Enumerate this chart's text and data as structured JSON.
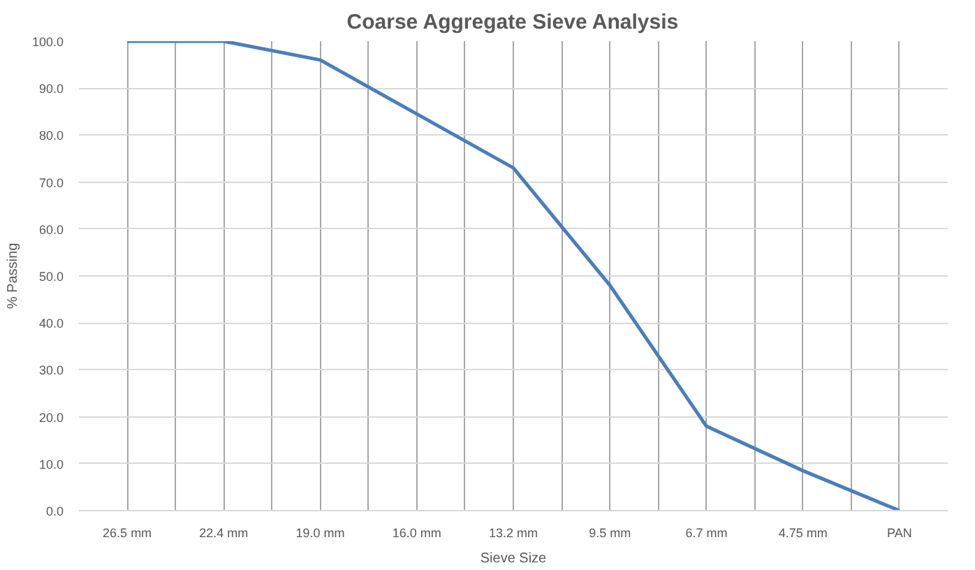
{
  "chart_data": {
    "type": "line",
    "title": "Coarse Aggregate Sieve Analysis",
    "xlabel": "Sieve Size",
    "ylabel": "% Passing",
    "categories": [
      "26.5 mm",
      "22.4 mm",
      "19.0 mm",
      "16.0 mm",
      "13.2 mm",
      "9.5 mm",
      "6.7 mm",
      "4.75 mm",
      "PAN"
    ],
    "series": [
      {
        "color": "#4a7ebb",
        "values": [
          100,
          100,
          96,
          84.5,
          73,
          48,
          18,
          8.5,
          0
        ]
      }
    ],
    "ylim": [
      0,
      100
    ],
    "yticks": [
      {
        "value": 0,
        "label": "0.0"
      },
      {
        "value": 10,
        "label": "10.0"
      },
      {
        "value": 20,
        "label": "20.0"
      },
      {
        "value": 30,
        "label": "30.0"
      },
      {
        "value": 40,
        "label": "40.0"
      },
      {
        "value": 50,
        "label": "50.0"
      },
      {
        "value": 60,
        "label": "60.0"
      },
      {
        "value": 70,
        "label": "70.0"
      },
      {
        "value": 80,
        "label": "80.0"
      },
      {
        "value": 90,
        "label": "90.0"
      },
      {
        "value": 100,
        "label": "100.0"
      }
    ],
    "grid": true,
    "marker": "none",
    "line_style": "solid"
  }
}
